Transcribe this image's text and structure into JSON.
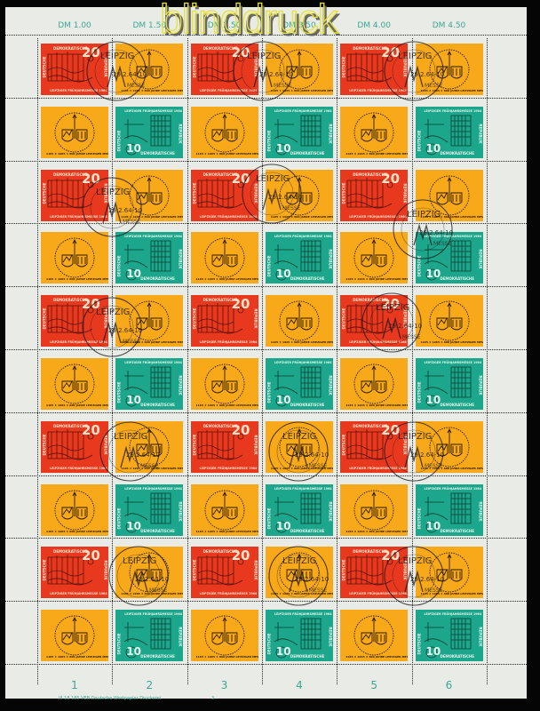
{
  "watermark": "blinddruck",
  "margin_values": [
    "DM 1.00",
    "DM 1.50",
    "DM 2.50",
    "DM 3.50",
    "DM 4.00",
    "DM 4.50"
  ],
  "column_numbers": [
    "1",
    "2",
    "3",
    "4",
    "5",
    "6"
  ],
  "printer_imprint": "III 18 185   VEB Deutsche Wertpapier Druckerei",
  "plate_number": "3",
  "colors": {
    "red_stamp": "#e8391f",
    "orange_label": "#f8a91a",
    "green_stamp": "#1ca68b",
    "margin_text": "#3aa894",
    "background": "#050505"
  },
  "stamps": {
    "red": {
      "country_top": "DEMOKRATISCHE",
      "country_left": "DEUTSCHE",
      "country_right": "REPUBLIK",
      "value": "20",
      "caption": "LEIPZIGER FRÜHJAHRSMESSE 1964"
    },
    "green": {
      "caption": "LEIPZIGER FRÜHJAHRSMESSE 1964",
      "country_bottom": "DEMOKRATISCHE",
      "country_left": "DEUTSCHE",
      "country_right": "REPUBLIK",
      "value": "10"
    },
    "orange": {
      "ring_text": "1165 ★ 1965 ★ 800 JAHRE LEIPZIGER MESSE"
    }
  },
  "postmark": {
    "city": "LEIPZIG",
    "date": "29.2.64-10",
    "event": "MESSE"
  },
  "sheet_rows": [
    [
      "red",
      "orange",
      "red",
      "orange",
      "red",
      "orange"
    ],
    [
      "orange",
      "green",
      "orange",
      "green",
      "orange",
      "green"
    ],
    [
      "red",
      "orange",
      "red",
      "orange",
      "red",
      "orange"
    ],
    [
      "orange",
      "green",
      "orange",
      "green",
      "orange",
      "green"
    ],
    [
      "red",
      "orange",
      "red",
      "orange",
      "red",
      "orange"
    ],
    [
      "orange",
      "green",
      "orange",
      "green",
      "orange",
      "green"
    ],
    [
      "red",
      "orange",
      "red",
      "orange",
      "red",
      "orange"
    ],
    [
      "orange",
      "green",
      "orange",
      "green",
      "orange",
      "green"
    ],
    [
      "red",
      "orange",
      "red",
      "orange",
      "red",
      "orange"
    ],
    [
      "orange",
      "green",
      "orange",
      "green",
      "orange",
      "green"
    ]
  ]
}
